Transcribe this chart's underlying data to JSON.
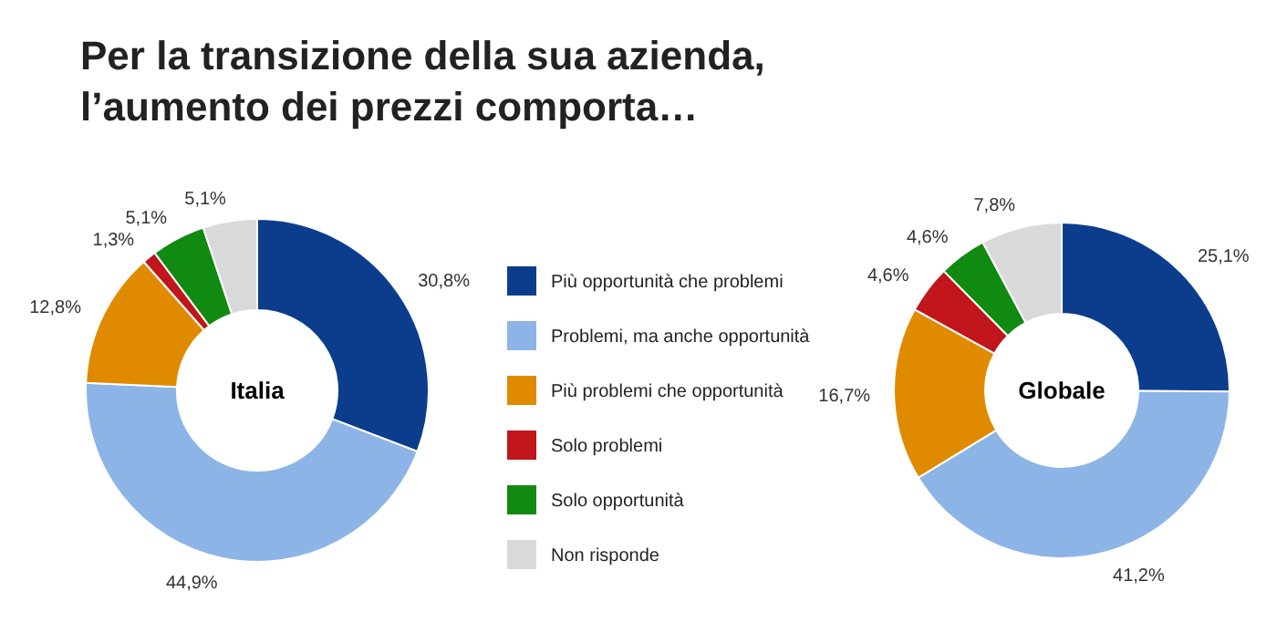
{
  "chart_data": [
    {
      "type": "donut",
      "title": "Per la transizione della sua azienda, l’aumento dei prezzi comporta…",
      "annotations": [
        "Italia"
      ],
      "legend": "right",
      "categories": [
        "Più opportunità che problemi",
        "Problemi, ma anche opportunità",
        "Più problemi che opportunità",
        "Solo problemi",
        "Solo opportunità",
        "Non risponde"
      ],
      "values": [
        30.8,
        44.9,
        12.8,
        1.3,
        5.1,
        5.1
      ],
      "value_labels": [
        "30,8%",
        "44,9%",
        "12,8%",
        "1,3%",
        "5,1%",
        "5,1%"
      ],
      "colors": [
        "#0b3d8c",
        "#8db4e6",
        "#e08a00",
        "#c0161c",
        "#108a10",
        "#d9d9d9"
      ]
    },
    {
      "type": "donut",
      "annotations": [
        "Globale"
      ],
      "legend": false,
      "categories": [
        null,
        null,
        null,
        null,
        null,
        null
      ],
      "values": [
        25.1,
        41.2,
        16.7,
        4.6,
        4.6,
        7.8
      ],
      "value_labels": [
        "25,1%",
        "41,2%",
        "16,7%",
        "4,6%",
        "4,6%",
        "7,8%"
      ],
      "colors": [
        "#0b3d8c",
        "#8db4e6",
        "#e08a00",
        "#c0161c",
        "#108a10",
        "#d9d9d9"
      ]
    }
  ]
}
